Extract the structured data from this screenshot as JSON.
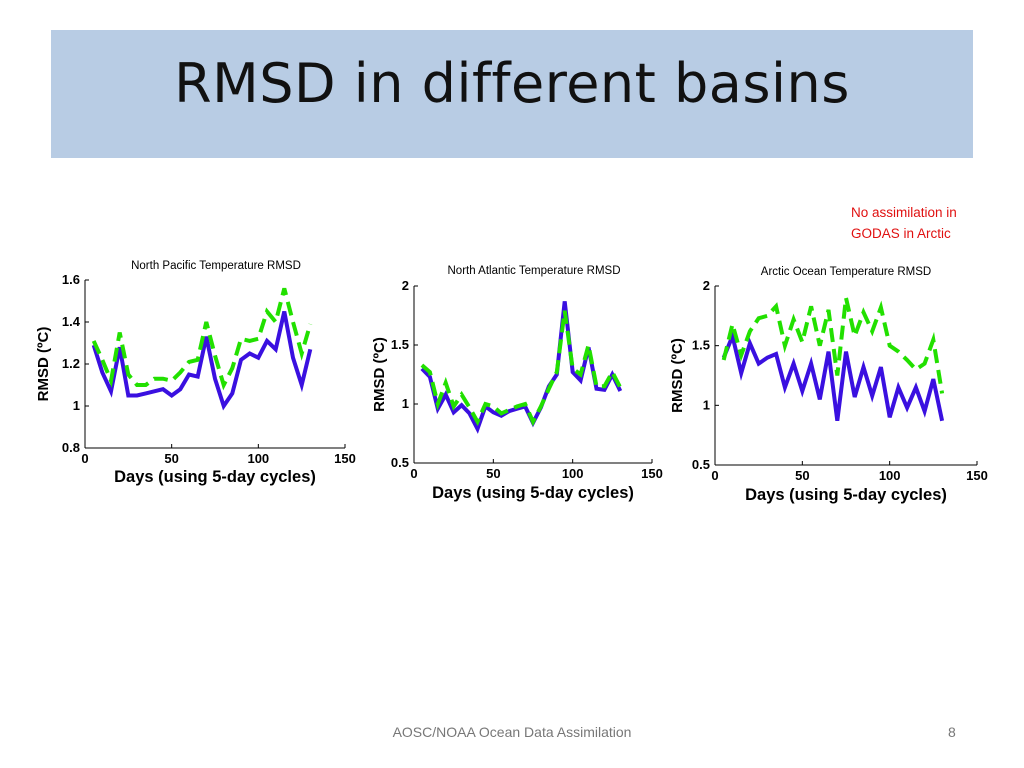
{
  "slide": {
    "title": "RMSD in different basins",
    "note_line1": "No assimilation in",
    "note_line2": "GODAS in Arctic",
    "footer": "AOSC/NOAA Ocean Data Assimilation",
    "page_number": "8"
  },
  "colors": {
    "title_band": "#b8cce4",
    "series_solid": "#3a10e0",
    "series_dashed": "#22e000",
    "note": "#e01010"
  },
  "chart_data": [
    {
      "type": "line",
      "title": "North Pacific Temperature RMSD",
      "xlabel": "Days (using 5-day cycles)",
      "ylabel": "RMSD (ºC)",
      "xlim": [
        0,
        150
      ],
      "ylim": [
        0.8,
        1.6
      ],
      "xticks": [
        0,
        50,
        100,
        150
      ],
      "yticks": [
        0.8,
        1.0,
        1.2,
        1.4,
        1.6
      ],
      "ytick_labels": [
        "0.8",
        "1",
        "1.2",
        "1.4",
        "1.6"
      ],
      "x": [
        5,
        10,
        15,
        20,
        25,
        30,
        35,
        40,
        45,
        50,
        55,
        60,
        65,
        70,
        75,
        80,
        85,
        90,
        95,
        100,
        105,
        110,
        115,
        120,
        125,
        130
      ],
      "series": [
        {
          "style": "solid",
          "values": [
            1.29,
            1.16,
            1.07,
            1.28,
            1.05,
            1.05,
            1.06,
            1.07,
            1.08,
            1.05,
            1.08,
            1.15,
            1.14,
            1.33,
            1.13,
            1.0,
            1.06,
            1.22,
            1.25,
            1.23,
            1.31,
            1.27,
            1.45,
            1.23,
            1.1,
            1.27
          ]
        },
        {
          "style": "dashed",
          "values": [
            1.31,
            1.22,
            1.12,
            1.35,
            1.15,
            1.1,
            1.1,
            1.13,
            1.13,
            1.12,
            1.16,
            1.21,
            1.22,
            1.4,
            1.24,
            1.1,
            1.18,
            1.32,
            1.31,
            1.32,
            1.45,
            1.4,
            1.56,
            1.4,
            1.25,
            1.39
          ]
        }
      ]
    },
    {
      "type": "line",
      "title": "North Atlantic Temperature RMSD",
      "xlabel": "Days (using 5-day cycles)",
      "ylabel": "RMSD (ºC)",
      "xlim": [
        0,
        150
      ],
      "ylim": [
        0.5,
        2
      ],
      "xticks": [
        0,
        50,
        100,
        150
      ],
      "yticks": [
        0.5,
        1,
        1.5,
        2
      ],
      "ytick_labels": [
        "0.5",
        "1",
        "1.5",
        "2"
      ],
      "x": [
        5,
        10,
        15,
        20,
        25,
        30,
        35,
        40,
        45,
        50,
        55,
        60,
        65,
        70,
        75,
        80,
        85,
        90,
        95,
        100,
        105,
        110,
        115,
        120,
        125,
        130
      ],
      "series": [
        {
          "style": "solid",
          "values": [
            1.3,
            1.23,
            0.96,
            1.08,
            0.93,
            0.99,
            0.92,
            0.79,
            0.98,
            0.93,
            0.9,
            0.94,
            0.96,
            0.98,
            0.84,
            0.97,
            1.15,
            1.25,
            1.87,
            1.27,
            1.2,
            1.48,
            1.13,
            1.12,
            1.25,
            1.11
          ]
        },
        {
          "style": "dashed",
          "values": [
            1.33,
            1.27,
            1.0,
            1.18,
            0.98,
            1.08,
            0.97,
            0.85,
            1.0,
            0.98,
            0.92,
            0.95,
            0.98,
            1.0,
            0.85,
            0.98,
            1.13,
            1.27,
            1.79,
            1.3,
            1.25,
            1.5,
            1.15,
            1.15,
            1.27,
            1.14
          ]
        }
      ]
    },
    {
      "type": "line",
      "title": "Arctic Ocean Temperature RMSD",
      "xlabel": "Days (using 5-day cycles)",
      "ylabel": "RMSD (ºC)",
      "xlim": [
        0,
        150
      ],
      "ylim": [
        0.5,
        2
      ],
      "xticks": [
        0,
        50,
        100,
        150
      ],
      "yticks": [
        0.5,
        1,
        1.5,
        2
      ],
      "ytick_labels": [
        "0.5",
        "1",
        "1.5",
        "2"
      ],
      "x": [
        5,
        10,
        15,
        20,
        25,
        30,
        35,
        40,
        45,
        50,
        55,
        60,
        65,
        70,
        75,
        80,
        85,
        90,
        95,
        100,
        105,
        110,
        115,
        120,
        125,
        130
      ],
      "series": [
        {
          "style": "solid",
          "values": [
            1.4,
            1.58,
            1.27,
            1.52,
            1.35,
            1.4,
            1.43,
            1.15,
            1.35,
            1.12,
            1.35,
            1.05,
            1.45,
            0.87,
            1.45,
            1.07,
            1.32,
            1.08,
            1.32,
            0.9,
            1.15,
            0.98,
            1.15,
            0.95,
            1.22,
            0.87
          ]
        },
        {
          "style": "dashed",
          "values": [
            1.38,
            1.68,
            1.42,
            1.62,
            1.73,
            1.75,
            1.83,
            1.5,
            1.72,
            1.53,
            1.83,
            1.5,
            1.8,
            1.25,
            1.9,
            1.58,
            1.78,
            1.62,
            1.82,
            1.5,
            1.45,
            1.38,
            1.3,
            1.35,
            1.55,
            1.1
          ]
        }
      ]
    }
  ]
}
